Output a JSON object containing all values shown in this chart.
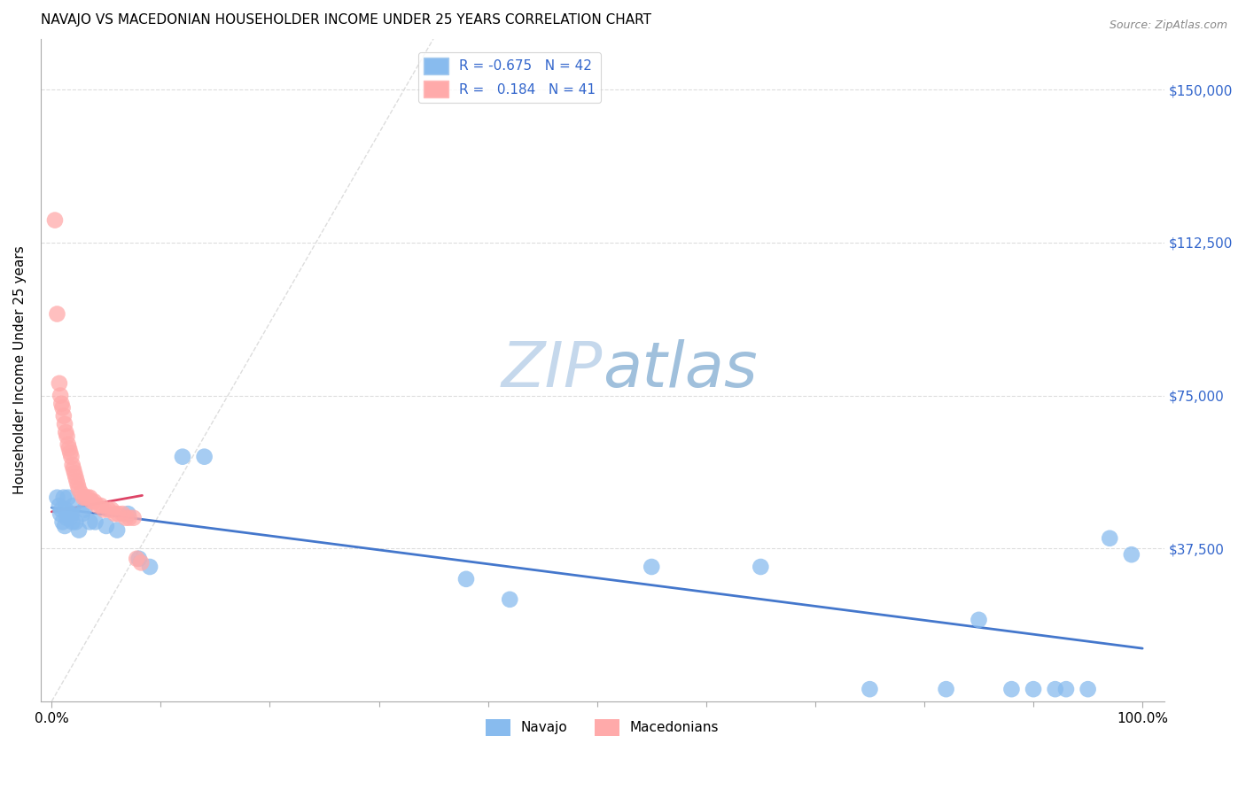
{
  "title": "NAVAJO VS MACEDONIAN HOUSEHOLDER INCOME UNDER 25 YEARS CORRELATION CHART",
  "source": "Source: ZipAtlas.com",
  "ylabel": "Householder Income Under 25 years",
  "ytick_values": [
    37500,
    75000,
    112500,
    150000
  ],
  "ytick_labels": [
    "$37,500",
    "$75,000",
    "$112,500",
    "$150,000"
  ],
  "ylim_min": 0,
  "ylim_max": 162500,
  "xlim_min": -0.01,
  "xlim_max": 1.02,
  "legend_r_navajo": "-0.675",
  "legend_n_navajo": "42",
  "legend_r_mace": "0.184",
  "legend_n_mace": "41",
  "navajo_color": "#88BBEE",
  "macedonian_color": "#FFAAAA",
  "navajo_line_color": "#4477CC",
  "macedonian_line_color": "#DD4466",
  "diagonal_color": "#DDDDDD",
  "grid_color": "#DDDDDD",
  "watermark_color": "#C5D8EC",
  "navajo_x": [
    0.005,
    0.007,
    0.008,
    0.009,
    0.01,
    0.011,
    0.012,
    0.013,
    0.014,
    0.015,
    0.016,
    0.017,
    0.018,
    0.019,
    0.02,
    0.022,
    0.025,
    0.028,
    0.03,
    0.035,
    0.04,
    0.05,
    0.06,
    0.07,
    0.08,
    0.09,
    0.12,
    0.14,
    0.38,
    0.42,
    0.55,
    0.65,
    0.75,
    0.82,
    0.85,
    0.88,
    0.9,
    0.92,
    0.93,
    0.95,
    0.97,
    0.99
  ],
  "navajo_y": [
    50000,
    48000,
    46000,
    47000,
    44000,
    50000,
    43000,
    47000,
    45000,
    50000,
    46000,
    45000,
    46000,
    44000,
    48000,
    44000,
    42000,
    46000,
    47000,
    44000,
    44000,
    43000,
    42000,
    46000,
    35000,
    33000,
    60000,
    60000,
    30000,
    25000,
    33000,
    33000,
    3000,
    3000,
    20000,
    3000,
    3000,
    3000,
    3000,
    3000,
    40000,
    36000
  ],
  "macedonian_x": [
    0.003,
    0.005,
    0.007,
    0.008,
    0.009,
    0.01,
    0.011,
    0.012,
    0.013,
    0.014,
    0.015,
    0.016,
    0.017,
    0.018,
    0.019,
    0.02,
    0.021,
    0.022,
    0.023,
    0.024,
    0.025,
    0.027,
    0.029,
    0.031,
    0.033,
    0.035,
    0.037,
    0.039,
    0.042,
    0.045,
    0.048,
    0.052,
    0.055,
    0.058,
    0.061,
    0.065,
    0.068,
    0.071,
    0.075,
    0.078,
    0.082
  ],
  "macedonian_y": [
    118000,
    95000,
    78000,
    75000,
    73000,
    72000,
    70000,
    68000,
    66000,
    65000,
    63000,
    62000,
    61000,
    60000,
    58000,
    57000,
    56000,
    55000,
    54000,
    53000,
    52000,
    51000,
    50000,
    50000,
    50000,
    50000,
    49000,
    49000,
    48000,
    48000,
    47000,
    47000,
    47000,
    46000,
    46000,
    46000,
    45000,
    45000,
    45000,
    35000,
    34000
  ],
  "navajo_trendline_x": [
    0.0,
    1.0
  ],
  "navajo_trendline_y": [
    47500,
    13000
  ],
  "macedonian_trendline_x": [
    0.0,
    0.083
  ],
  "macedonian_trendline_y": [
    46500,
    50500
  ]
}
